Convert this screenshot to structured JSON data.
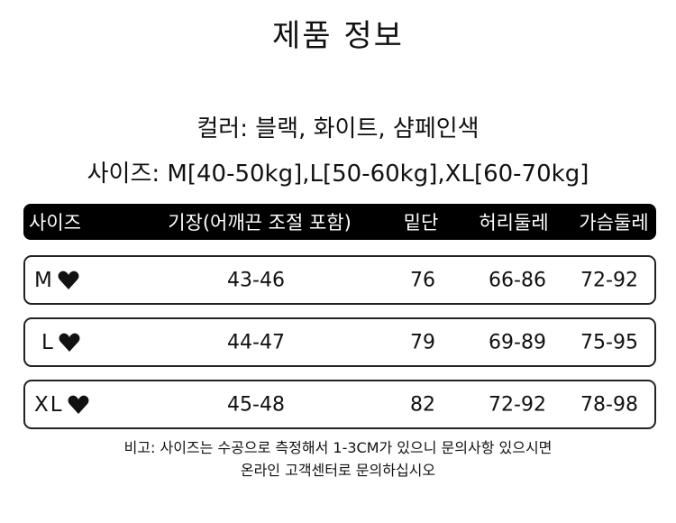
{
  "header": {
    "title": "제품 정보"
  },
  "info": {
    "color": "컬러: 블랙, 화이트, 샴페인색",
    "sizes": "사이즈: M[40-50kg],L[50-60kg],XL[60-70kg]"
  },
  "table": {
    "columns": [
      "사이즈",
      "기장(어깨끈 조절 포함)",
      "밑단",
      "허리둘레",
      "가슴둘레"
    ],
    "rows": [
      [
        "M",
        "43-46",
        "76",
        "66-86",
        "72-92"
      ],
      [
        "L",
        "44-47",
        "79",
        "69-89",
        "75-95"
      ],
      [
        "XL",
        "45-48",
        "82",
        "72-92",
        "78-98"
      ]
    ]
  },
  "note": {
    "lines": [
      "비고: 사이즈는 수공으로 측정해서 1-3CM가 있으니 문의사항 있으시면",
      "온라인 고객센터로 문의하십시오"
    ]
  }
}
